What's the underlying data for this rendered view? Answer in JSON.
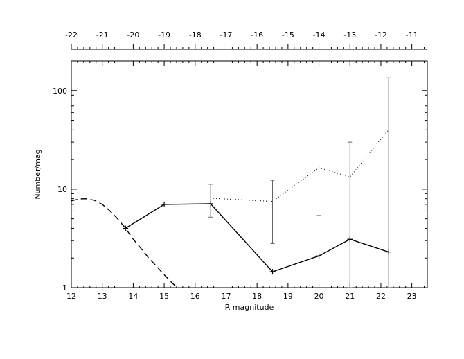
{
  "chart_data": {
    "type": "line",
    "xlabel": "R magnitude",
    "ylabel": "Number/mag",
    "xlim": [
      12,
      23.5
    ],
    "ylim": [
      1,
      200
    ],
    "y_scale": "log",
    "x_ticks": [
      "12",
      "13",
      "14",
      "15",
      "16",
      "17",
      "18",
      "19",
      "20",
      "21",
      "22",
      "23"
    ],
    "y_ticks": [
      "1",
      "10",
      "100"
    ],
    "top_axis": {
      "ticks": [
        "-22",
        "-21",
        "-20",
        "-19",
        "-18",
        "-17",
        "-16",
        "-15",
        "-14",
        "-13",
        "-12",
        "-11"
      ],
      "values": [
        -22,
        -21,
        -20,
        -19,
        -18,
        -17,
        -16,
        -15,
        -14,
        -13,
        -12,
        -11
      ],
      "x_positions": [
        12.0,
        13.0,
        14.0,
        15.0,
        16.0,
        17.0,
        18.0,
        19.0,
        20.0,
        21.0,
        22.0,
        23.0
      ]
    },
    "series": [
      {
        "style": "solid",
        "markers": "plus",
        "x": [
          13.75,
          15.0,
          16.5,
          18.5,
          20.0,
          21.0,
          22.25
        ],
        "y": [
          4.0,
          7.0,
          7.1,
          1.45,
          2.1,
          3.1,
          2.3
        ]
      },
      {
        "style": "dotted",
        "x": [
          16.5,
          18.5,
          20.0,
          21.0,
          22.25
        ],
        "y": [
          8.1,
          7.5,
          16.5,
          13.3,
          40
        ]
      },
      {
        "style": "dashed",
        "x": [
          12.0,
          12.25,
          12.5,
          12.75,
          13.0,
          13.25,
          13.5,
          13.75,
          14.0,
          14.25,
          14.5,
          14.75,
          15.0,
          15.25,
          15.5
        ],
        "y": [
          7.6,
          7.95,
          8.0,
          7.7,
          7.0,
          6.0,
          5.0,
          4.0,
          3.1,
          2.5,
          2.0,
          1.65,
          1.35,
          1.12,
          0.95
        ]
      }
    ],
    "error_bars": [
      {
        "x": 16.5,
        "low": 5.2,
        "high": 11.2
      },
      {
        "x": 18.5,
        "low": 2.8,
        "high": 12.3
      },
      {
        "x": 20.0,
        "low": 5.4,
        "high": 27.5
      },
      {
        "x": 21.0,
        "low": 1.0,
        "high": 30.0
      },
      {
        "x": 22.25,
        "low": 1.0,
        "high": 135
      }
    ]
  }
}
